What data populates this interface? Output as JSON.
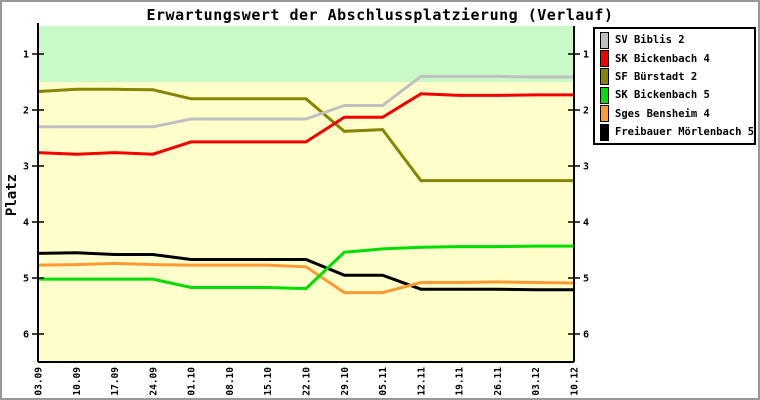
{
  "title": "Erwartungswert der Abschlussplatzierung (Verlauf)",
  "y_axis": {
    "label": "Platz",
    "tick_labels": [
      "1",
      "2",
      "3",
      "4",
      "5",
      "6"
    ]
  },
  "x_axis": {
    "tick_labels": [
      "03.09",
      "10.09",
      "17.09",
      "24.09",
      "01.10",
      "08.10",
      "15.10",
      "22.10",
      "29.10",
      "05.11",
      "12.11",
      "19.11",
      "26.11",
      "03.12",
      "10.12"
    ]
  },
  "colors": {
    "plot_background": "#ffffcc",
    "promotion_band": "#c8fac8",
    "axis": "#000000",
    "frame_border": "#999999",
    "legend_background": "#ffffff"
  },
  "chart_data": {
    "type": "line",
    "title": "Erwartungswert der Abschlussplatzierung (Verlauf)",
    "xlabel": "",
    "ylabel": "Platz",
    "x": [
      "03.09",
      "10.09",
      "17.09",
      "24.09",
      "01.10",
      "08.10",
      "15.10",
      "22.10",
      "29.10",
      "05.11",
      "12.11",
      "19.11",
      "26.11",
      "03.12",
      "10.12"
    ],
    "ylim": [
      6.5,
      0.5
    ],
    "y_inverted": true,
    "y_ticks": [
      1,
      2,
      3,
      4,
      5,
      6
    ],
    "grid": false,
    "legend_position": "top-right",
    "plot_background": "#ffffcc",
    "background_bands": [
      {
        "name": "promotion-zone",
        "from": 0.5,
        "to": 1.5,
        "color": "#c8fac8"
      }
    ],
    "series": [
      {
        "name": "SV Biblis 2",
        "color": "#c0c0c0",
        "values": [
          2.3,
          2.3,
          2.3,
          2.3,
          2.16,
          2.16,
          2.16,
          2.16,
          1.92,
          1.92,
          1.4,
          1.4,
          1.4,
          1.41,
          1.41
        ]
      },
      {
        "name": "SK Bickenbach 4",
        "color": "#f40000",
        "values": [
          2.76,
          2.79,
          2.76,
          2.79,
          2.57,
          2.57,
          2.57,
          2.57,
          2.13,
          2.13,
          1.71,
          1.74,
          1.74,
          1.73,
          1.73
        ]
      },
      {
        "name": "SF Bürstadt 2",
        "color": "#858500",
        "values": [
          1.67,
          1.63,
          1.63,
          1.64,
          1.8,
          1.8,
          1.8,
          1.8,
          2.38,
          2.35,
          3.26,
          3.26,
          3.26,
          3.26,
          3.26
        ]
      },
      {
        "name": "SK Bickenbach 5",
        "color": "#00dd00",
        "values": [
          5.02,
          5.02,
          5.02,
          5.02,
          5.17,
          5.17,
          5.17,
          5.19,
          4.54,
          4.48,
          4.45,
          4.44,
          4.44,
          4.43,
          4.43
        ]
      },
      {
        "name": "Sges Bensheim 4",
        "color": "#ff9933",
        "values": [
          4.77,
          4.76,
          4.74,
          4.76,
          4.77,
          4.77,
          4.77,
          4.8,
          5.26,
          5.26,
          5.08,
          5.08,
          5.07,
          5.08,
          5.09
        ]
      },
      {
        "name": "Freibauer Mörlenbach 5",
        "color": "#000000",
        "values": [
          4.56,
          4.55,
          4.58,
          4.58,
          4.67,
          4.67,
          4.67,
          4.67,
          4.95,
          4.95,
          5.2,
          5.2,
          5.2,
          5.21,
          5.21
        ]
      }
    ]
  }
}
